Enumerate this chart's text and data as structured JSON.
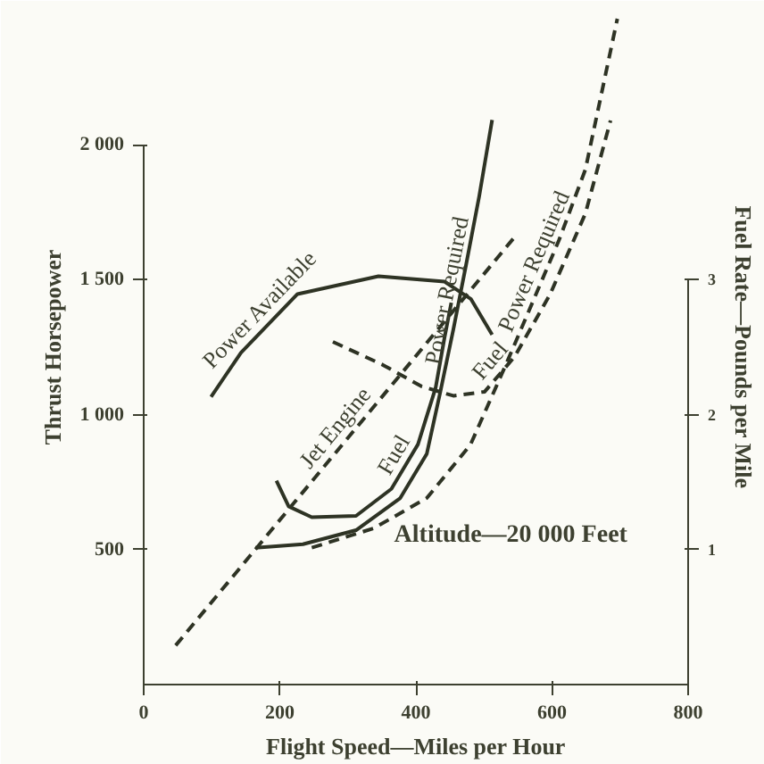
{
  "chart_data": {
    "type": "line",
    "xlabel": "Flight Speed—Miles per Hour",
    "ylabel": "Thrust Horsepower",
    "y2label": "Fuel Rate—Pounds per Mile",
    "xlim": [
      0,
      800
    ],
    "xticks": [
      0,
      200,
      400,
      600,
      800
    ],
    "ylim": [
      0,
      2500
    ],
    "yticks": [
      500,
      {
        "value": 1000,
        "label": "1 000"
      },
      {
        "value": 1500,
        "label": "1 500"
      },
      {
        "value": 2000,
        "label": "2 000"
      }
    ],
    "y2lim": [
      0,
      5
    ],
    "y2ticks": [
      1,
      2,
      3
    ],
    "grid": false,
    "series": [
      {
        "name": "Power Available",
        "color": "#2e3324",
        "line_style": "solid",
        "x": [
          99,
          143,
          226,
          345,
          442,
          481,
          512
        ],
        "values": [
          1066,
          1230,
          1447,
          1513,
          1493,
          1428,
          1296
        ]
      },
      {
        "name": "Power Required",
        "color": "#2e3324",
        "line_style": "solid",
        "x": [
          164,
          234,
          312,
          377,
          416,
          436,
          455,
          473,
          493,
          512
        ],
        "values": [
          507,
          520,
          572,
          691,
          855,
          1086,
          1316,
          1546,
          1809,
          2092
        ]
      },
      {
        "name": "Fuel",
        "color": "#2e3324",
        "line_style": "solid",
        "axis": "y2",
        "x": [
          195,
          213,
          247,
          312,
          364,
          403,
          429,
          442,
          452
        ],
        "values": [
          1.51,
          1.32,
          1.24,
          1.25,
          1.45,
          1.78,
          2.2,
          2.57,
          2.83
        ]
      },
      {
        "name": "Jet Engine",
        "color": "#2e3324",
        "line_style": "dashed",
        "x": [
          47,
          545
        ],
        "values": [
          145,
          1658
        ]
      },
      {
        "name": "Power Required",
        "color": "#2e3324",
        "line_style": "dashed",
        "x": [
          247,
          338,
          416,
          480,
          532,
          571,
          610,
          649,
          696
        ],
        "values": [
          507,
          579,
          691,
          888,
          1184,
          1414,
          1645,
          1908,
          2467
        ]
      },
      {
        "name": "Fuel",
        "color": "#2e3324",
        "line_style": "dashed",
        "axis": "y2",
        "x": [
          278,
          351,
          408,
          455,
          501,
          545,
          597,
          649,
          686
        ],
        "values": [
          2.54,
          2.37,
          2.21,
          2.14,
          2.17,
          2.43,
          2.89,
          3.49,
          4.18
        ]
      }
    ],
    "annotations": [
      "Altitude—20 000 Feet"
    ]
  }
}
